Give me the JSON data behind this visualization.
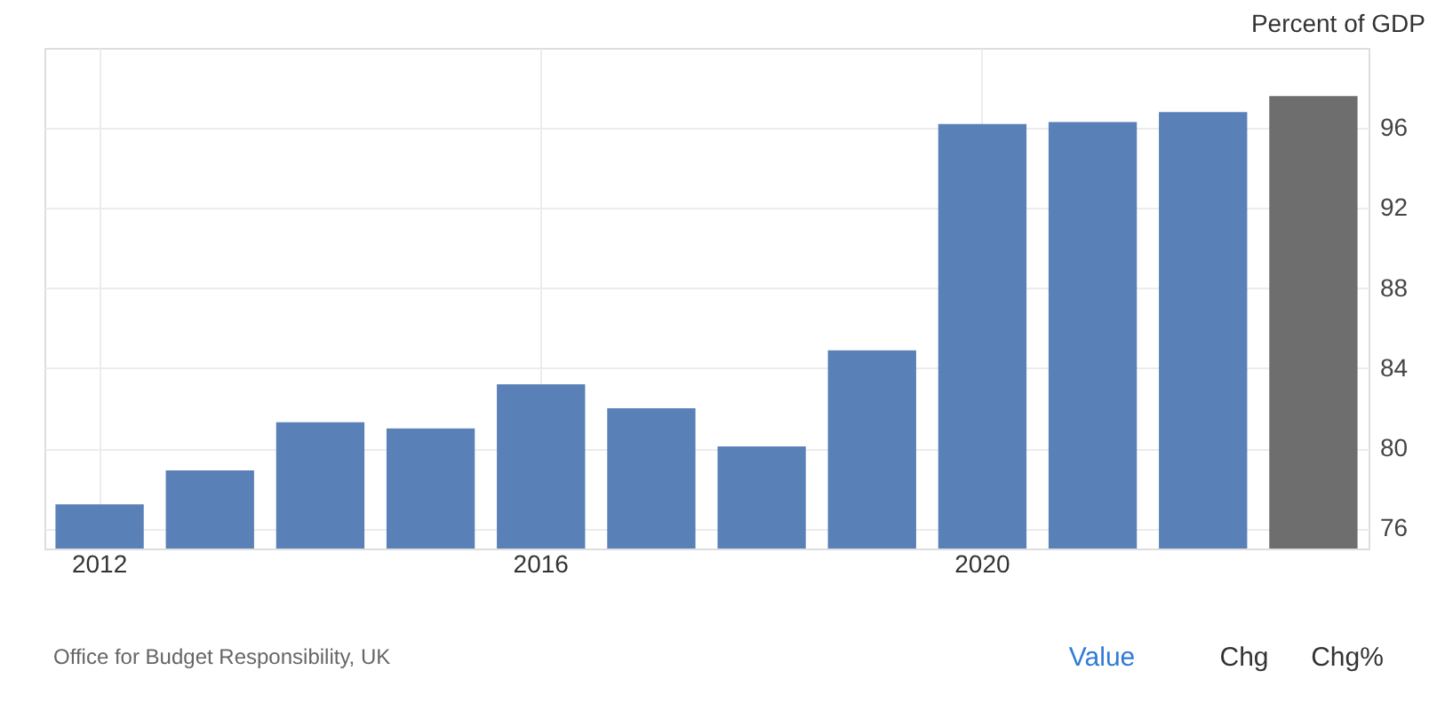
{
  "chart_data": {
    "type": "bar",
    "ylabel": "Percent of GDP",
    "categories": [
      "2012",
      null,
      null,
      null,
      "2016",
      null,
      null,
      null,
      "2020",
      null,
      null,
      null
    ],
    "values": [
      77.2,
      78.9,
      81.3,
      81.0,
      83.2,
      82.0,
      80.1,
      84.9,
      96.2,
      96.3,
      96.8,
      97.6
    ],
    "colors": [
      "#5a80b8",
      "#5a80b8",
      "#5a80b8",
      "#5a80b8",
      "#5a80b8",
      "#5a80b8",
      "#5a80b8",
      "#5a80b8",
      "#5a80b8",
      "#5a80b8",
      "#5a80b8",
      "#6e6e6e"
    ],
    "ylim": [
      75,
      100
    ],
    "yticks": [
      76,
      80,
      84,
      88,
      92,
      96
    ],
    "grid": true,
    "annotations": [
      "Office for Budget Responsibility, UK",
      "Value",
      "Chg",
      "Chg%"
    ]
  }
}
